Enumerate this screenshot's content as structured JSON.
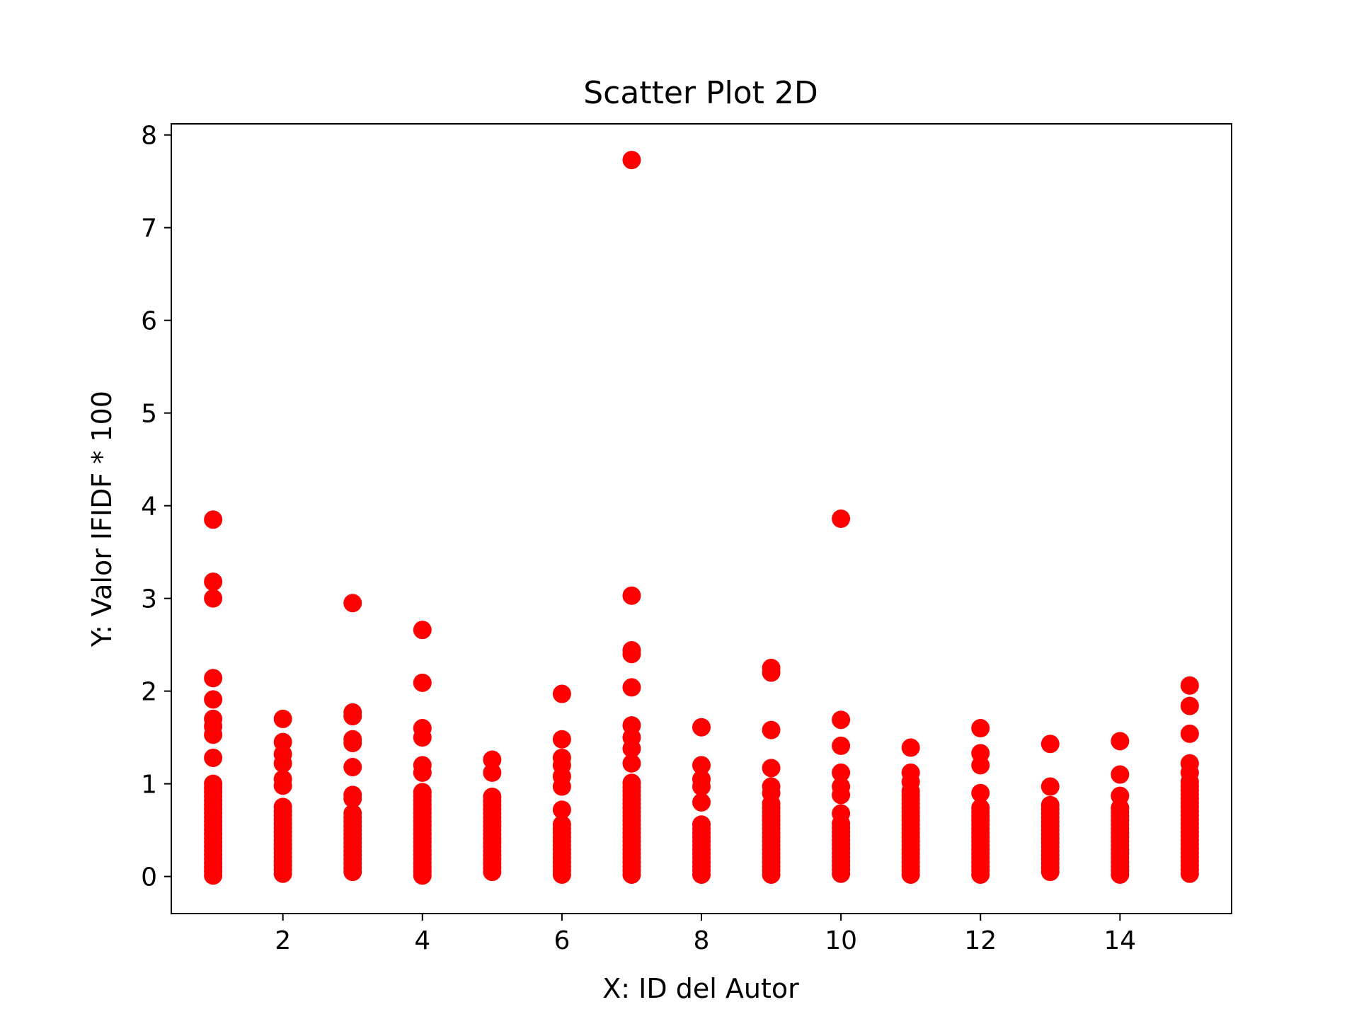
{
  "chart_data": {
    "type": "scatter",
    "title": "Scatter Plot 2D",
    "xlabel": "X: ID del Autor",
    "ylabel": "Y: Valor IFIDF * 100",
    "xlim": [
      0.4,
      15.6
    ],
    "ylim": [
      -0.4,
      8.12
    ],
    "x_ticks": [
      2,
      4,
      6,
      8,
      10,
      12,
      14
    ],
    "y_ticks": [
      0,
      1,
      2,
      3,
      4,
      5,
      6,
      7,
      8
    ],
    "grid": false,
    "marker_color": "#ff0000",
    "columns": [
      {
        "x": 1,
        "outliers": [
          3.85,
          3.18,
          3.0,
          2.14,
          1.91,
          1.7,
          1.62,
          1.53,
          1.28
        ],
        "dense_max": 1.02,
        "dense_min": 0.01
      },
      {
        "x": 2,
        "outliers": [
          1.7,
          1.45,
          1.32,
          1.22,
          1.05,
          0.98
        ],
        "dense_max": 0.78,
        "dense_min": 0.03
      },
      {
        "x": 3,
        "outliers": [
          2.95,
          1.77,
          1.73,
          1.48,
          1.44,
          1.18,
          0.88,
          0.84
        ],
        "dense_max": 0.72,
        "dense_min": 0.05
      },
      {
        "x": 4,
        "outliers": [
          2.66,
          2.09,
          1.6,
          1.5,
          1.2,
          1.12
        ],
        "dense_max": 0.92,
        "dense_min": 0.01
      },
      {
        "x": 5,
        "outliers": [
          1.26,
          1.12
        ],
        "dense_max": 0.88,
        "dense_min": 0.05
      },
      {
        "x": 6,
        "outliers": [
          1.97,
          1.48,
          1.28,
          1.2,
          1.08,
          0.97,
          0.72
        ],
        "dense_max": 0.58,
        "dense_min": 0.02
      },
      {
        "x": 7,
        "outliers": [
          7.73,
          3.03,
          2.44,
          2.4,
          2.04,
          1.63,
          1.5,
          1.38,
          1.22
        ],
        "dense_max": 1.02,
        "dense_min": 0.02
      },
      {
        "x": 8,
        "outliers": [
          1.61,
          1.2,
          1.05,
          0.97,
          0.8
        ],
        "dense_max": 0.6,
        "dense_min": 0.02
      },
      {
        "x": 9,
        "outliers": [
          2.25,
          2.2,
          1.58,
          1.17,
          0.97,
          0.9
        ],
        "dense_max": 0.8,
        "dense_min": 0.02
      },
      {
        "x": 10,
        "outliers": [
          3.86,
          1.69,
          1.41,
          1.12,
          0.97,
          0.88,
          0.68
        ],
        "dense_max": 0.6,
        "dense_min": 0.03
      },
      {
        "x": 11,
        "outliers": [
          1.39,
          1.12,
          1.02
        ],
        "dense_max": 0.95,
        "dense_min": 0.02
      },
      {
        "x": 12,
        "outliers": [
          1.6,
          1.33,
          1.2,
          0.9
        ],
        "dense_max": 0.75,
        "dense_min": 0.02
      },
      {
        "x": 13,
        "outliers": [
          1.43,
          0.97
        ],
        "dense_max": 0.78,
        "dense_min": 0.05
      },
      {
        "x": 14,
        "outliers": [
          1.46,
          1.1,
          0.87
        ],
        "dense_max": 0.78,
        "dense_min": 0.02
      },
      {
        "x": 15,
        "outliers": [
          2.06,
          1.84,
          1.54,
          1.22,
          1.12
        ],
        "dense_max": 1.02,
        "dense_min": 0.03
      }
    ]
  }
}
